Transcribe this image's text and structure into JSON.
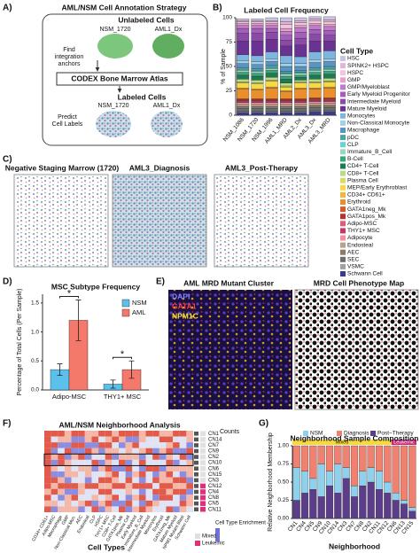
{
  "panels": {
    "a": {
      "letter": "A)",
      "title": "AML/NSM Cell Annotation Strategy",
      "unlabeled": "Unlabeled Cells",
      "sample1": "NSM_1720",
      "sample2": "AML1_Dx",
      "find": [
        "Find",
        "integration",
        "anchors"
      ],
      "atlas": "CODEX Bone Marrow Atlas",
      "labeled": "Labeled Cells",
      "sample3": "NSM_1720",
      "sample4": "AML1_Dx",
      "predict": [
        "Predict",
        "Cell Labels"
      ]
    },
    "b": {
      "letter": "B)"
    },
    "c": {
      "letter": "C)",
      "images": [
        "Negative Staging Marrow (1720)",
        "AML3_Diagnosis",
        "AML3_Post-Therapy"
      ]
    },
    "d": {
      "letter": "D)"
    },
    "e": {
      "letter": "E)",
      "title1": "AML MRD Mutant Cluster",
      "stains": [
        "DAPI",
        "GATA1",
        "NPM1C"
      ],
      "title2": "MRD Cell Phenotype Map"
    },
    "f": {
      "letter": "F)",
      "title": "AML/NSM Neighborhood Analysis",
      "counts": "Counts",
      "rows": [
        "CN1",
        "CN14",
        "CN7",
        "CN9",
        "CN2",
        "CN10",
        "CN6",
        "CN15",
        "CN3",
        "CN12",
        "CN4",
        "CN8",
        "CN5",
        "CN11"
      ],
      "cols": [
        "CD34+ CD61+",
        "Adipo-MSC",
        "Macrophage",
        "GMP",
        "Non-Classical Mon.",
        "AEC",
        "Endosteal",
        "CLP",
        "HSPC",
        "THY1+ MSC",
        "CD8+ T-Cell",
        "GATA1pos_Mk",
        "Plasma Cell",
        "Early Myeloid",
        "Immature_B_Cell",
        "Intermediate Myeloid",
        "Monocytes",
        "Erythroid",
        "GATA1neg_Mk",
        "Mature Myeloid",
        "NPM1 Mutant Blast",
        "Schwann Cell"
      ],
      "xlabel": "Cell Types",
      "legend_title": "Cell Type Enrichment",
      "groups": [
        "Mixed",
        "Leukemic"
      ]
    },
    "g": {
      "letter": "G)",
      "strip": [
        "Mixed",
        "Leukemic"
      ]
    }
  },
  "chart_data": [
    {
      "type": "stacked_bar",
      "title": "Labeled Cell Frequency",
      "ylabel": "% of Sample",
      "legend_title": "Cell Type",
      "categories": [
        "NSM_1086",
        "NSM_1720",
        "NSM_1996",
        "AML1_MRD",
        "AML2_Dx",
        "AML3_Dx",
        "AML3_MRD"
      ],
      "ylim": [
        0,
        100
      ],
      "yticks": [
        0,
        25,
        50,
        75,
        100
      ],
      "series": [
        {
          "name": "HSC",
          "color": "#c9c3e6",
          "values": [
            2,
            2,
            3,
            4,
            3,
            2,
            3
          ]
        },
        {
          "name": "SPINK2+ HSPC",
          "color": "#e3b6d9",
          "values": [
            1,
            1,
            1,
            3,
            2,
            2,
            2
          ]
        },
        {
          "name": "HSPC",
          "color": "#f1c6dc",
          "values": [
            2,
            2,
            2,
            4,
            3,
            3,
            3
          ]
        },
        {
          "name": "GMP",
          "color": "#e8a0c8",
          "values": [
            2,
            2,
            2,
            3,
            2,
            2,
            2
          ]
        },
        {
          "name": "GMP/Myeloblast",
          "color": "#c17ac9",
          "values": [
            3,
            3,
            3,
            4,
            5,
            4,
            4
          ]
        },
        {
          "name": "Early Myeloid Progenitor",
          "color": "#a35fba",
          "values": [
            5,
            5,
            4,
            5,
            6,
            5,
            5
          ]
        },
        {
          "name": "Intermediate Myeloid",
          "color": "#8a4aa8",
          "values": [
            8,
            8,
            7,
            6,
            7,
            7,
            6
          ]
        },
        {
          "name": "Mature Myeloid",
          "color": "#6a3292",
          "values": [
            14,
            15,
            13,
            10,
            12,
            11,
            10
          ]
        },
        {
          "name": "Monocytes",
          "color": "#7fb6e0",
          "values": [
            6,
            6,
            7,
            8,
            7,
            8,
            8
          ]
        },
        {
          "name": "Non-Classical Monocyte",
          "color": "#a3cfe9",
          "values": [
            3,
            3,
            3,
            3,
            3,
            3,
            3
          ]
        },
        {
          "name": "Macrophage",
          "color": "#5c93c7",
          "values": [
            4,
            4,
            4,
            5,
            4,
            5,
            5
          ]
        },
        {
          "name": "pDC",
          "color": "#49a6a6",
          "values": [
            2,
            2,
            2,
            2,
            2,
            2,
            2
          ]
        },
        {
          "name": "CLP",
          "color": "#6ed1d0",
          "values": [
            1,
            1,
            1,
            1,
            1,
            1,
            1
          ]
        },
        {
          "name": "Immature_B_Cell",
          "color": "#9bd7c0",
          "values": [
            2,
            2,
            2,
            2,
            2,
            2,
            2
          ]
        },
        {
          "name": "B-Cell",
          "color": "#3aa57a",
          "values": [
            3,
            3,
            3,
            3,
            2,
            3,
            3
          ]
        },
        {
          "name": "CD4+ T-Cell",
          "color": "#1f7a52",
          "values": [
            4,
            4,
            4,
            4,
            3,
            4,
            4
          ]
        },
        {
          "name": "CD8+ T-Cell",
          "color": "#b9dc8a",
          "values": [
            3,
            3,
            3,
            3,
            2,
            3,
            3
          ]
        },
        {
          "name": "Plasma Cell",
          "color": "#ddd86a",
          "values": [
            1,
            1,
            1,
            1,
            1,
            1,
            1
          ]
        },
        {
          "name": "MEP/Early Erythroblast",
          "color": "#f4d942",
          "values": [
            5,
            5,
            6,
            4,
            5,
            5,
            5
          ]
        },
        {
          "name": "CD34+ CD61+",
          "color": "#f2b43b",
          "values": [
            1,
            1,
            1,
            1,
            1,
            1,
            1
          ]
        },
        {
          "name": "Erythroid",
          "color": "#ea8f2b",
          "values": [
            10,
            9,
            11,
            7,
            10,
            9,
            10
          ]
        },
        {
          "name": "GATA1neg_Mk",
          "color": "#d8592a",
          "values": [
            1,
            1,
            1,
            1,
            1,
            1,
            1
          ]
        },
        {
          "name": "GATA1pos_Mk",
          "color": "#b8312d",
          "values": [
            1,
            1,
            1,
            1,
            1,
            1,
            1
          ]
        },
        {
          "name": "Adipo-MSC",
          "color": "#e05b7a",
          "values": [
            1,
            1,
            1,
            1,
            1,
            1,
            1
          ]
        },
        {
          "name": "THY1+ MSC",
          "color": "#c3376d",
          "values": [
            1,
            1,
            1,
            1,
            1,
            1,
            1
          ]
        },
        {
          "name": "Adipocyte",
          "color": "#f28ea0",
          "values": [
            2,
            2,
            2,
            2,
            2,
            2,
            2
          ]
        },
        {
          "name": "Endosteal",
          "color": "#b5a48a",
          "values": [
            2,
            2,
            2,
            2,
            2,
            2,
            2
          ]
        },
        {
          "name": "AEC",
          "color": "#8c7b6a",
          "values": [
            2,
            2,
            2,
            2,
            2,
            2,
            2
          ]
        },
        {
          "name": "SEC",
          "color": "#6d6d6d",
          "values": [
            3,
            3,
            3,
            3,
            3,
            3,
            3
          ]
        },
        {
          "name": "VSMC",
          "color": "#a0a0a0",
          "values": [
            1,
            1,
            1,
            1,
            1,
            1,
            1
          ]
        },
        {
          "name": "Schwann Cell",
          "color": "#3b3b8c",
          "values": [
            3,
            3,
            3,
            3,
            3,
            4,
            4
          ]
        }
      ]
    },
    {
      "type": "grouped_bar",
      "title": "MSC Subtype Frequency",
      "ylabel": "Percentage of Total Cells (Per Sample)",
      "categories": [
        "Adipo-MSC",
        "THY1+ MSC"
      ],
      "ylim": [
        0,
        1.65
      ],
      "yticks": [
        {
          "value": 0,
          "label": "0.0"
        },
        0.5,
        {
          "value": 1,
          "label": "1.0"
        },
        1.5
      ],
      "series": [
        {
          "name": "NSM",
          "color": "#5bc0eb",
          "values": [
            0.35,
            0.1
          ],
          "errors": [
            0.1,
            0.07
          ]
        },
        {
          "name": "AML",
          "color": "#f4796b",
          "values": [
            1.2,
            0.35
          ],
          "errors": [
            0.35,
            0.15
          ]
        }
      ],
      "annotations": [
        "*",
        "*"
      ]
    },
    {
      "type": "stacked_bar",
      "title": "Neighborhood Sample Composition",
      "ylabel": "Relative Neighborhood Membership",
      "xlabel": "Neighborhood",
      "categories": [
        "CN1",
        "CN4",
        "CN5",
        "CN9",
        "CN10",
        "CN14",
        "CN3",
        "CN7",
        "CN8",
        "CN2",
        "CN11",
        "CN12",
        "CN6",
        "CN13",
        "CN15"
      ],
      "ylim": [
        0,
        1
      ],
      "yticks": [
        {
          "value": 0,
          "label": "0.00"
        },
        {
          "value": 0.25,
          "label": "0.25"
        },
        {
          "value": 0.5,
          "label": "0.50"
        },
        {
          "value": 0.75,
          "label": "0.75"
        },
        {
          "value": 1,
          "label": "1.00"
        }
      ],
      "series": [
        {
          "name": "NSM",
          "color": "#8fd0ec",
          "values": [
            0.45,
            0.3,
            0.15,
            0.45,
            0.2,
            0.4,
            0.15,
            0.15,
            0.2,
            0.2,
            0.25,
            0.15,
            0.1,
            0.05,
            0.05
          ]
        },
        {
          "name": "Diagnosis",
          "color": "#f08070",
          "values": [
            0.3,
            0.35,
            0.45,
            0.25,
            0.35,
            0.25,
            0.3,
            0.55,
            0.35,
            0.3,
            0.35,
            0.5,
            0.65,
            0.75,
            0.85
          ]
        },
        {
          "name": "Post−Therapy",
          "color": "#5b3d8a",
          "values": [
            0.25,
            0.35,
            0.4,
            0.3,
            0.45,
            0.35,
            0.55,
            0.3,
            0.45,
            0.5,
            0.4,
            0.35,
            0.25,
            0.2,
            0.1
          ]
        }
      ]
    }
  ]
}
